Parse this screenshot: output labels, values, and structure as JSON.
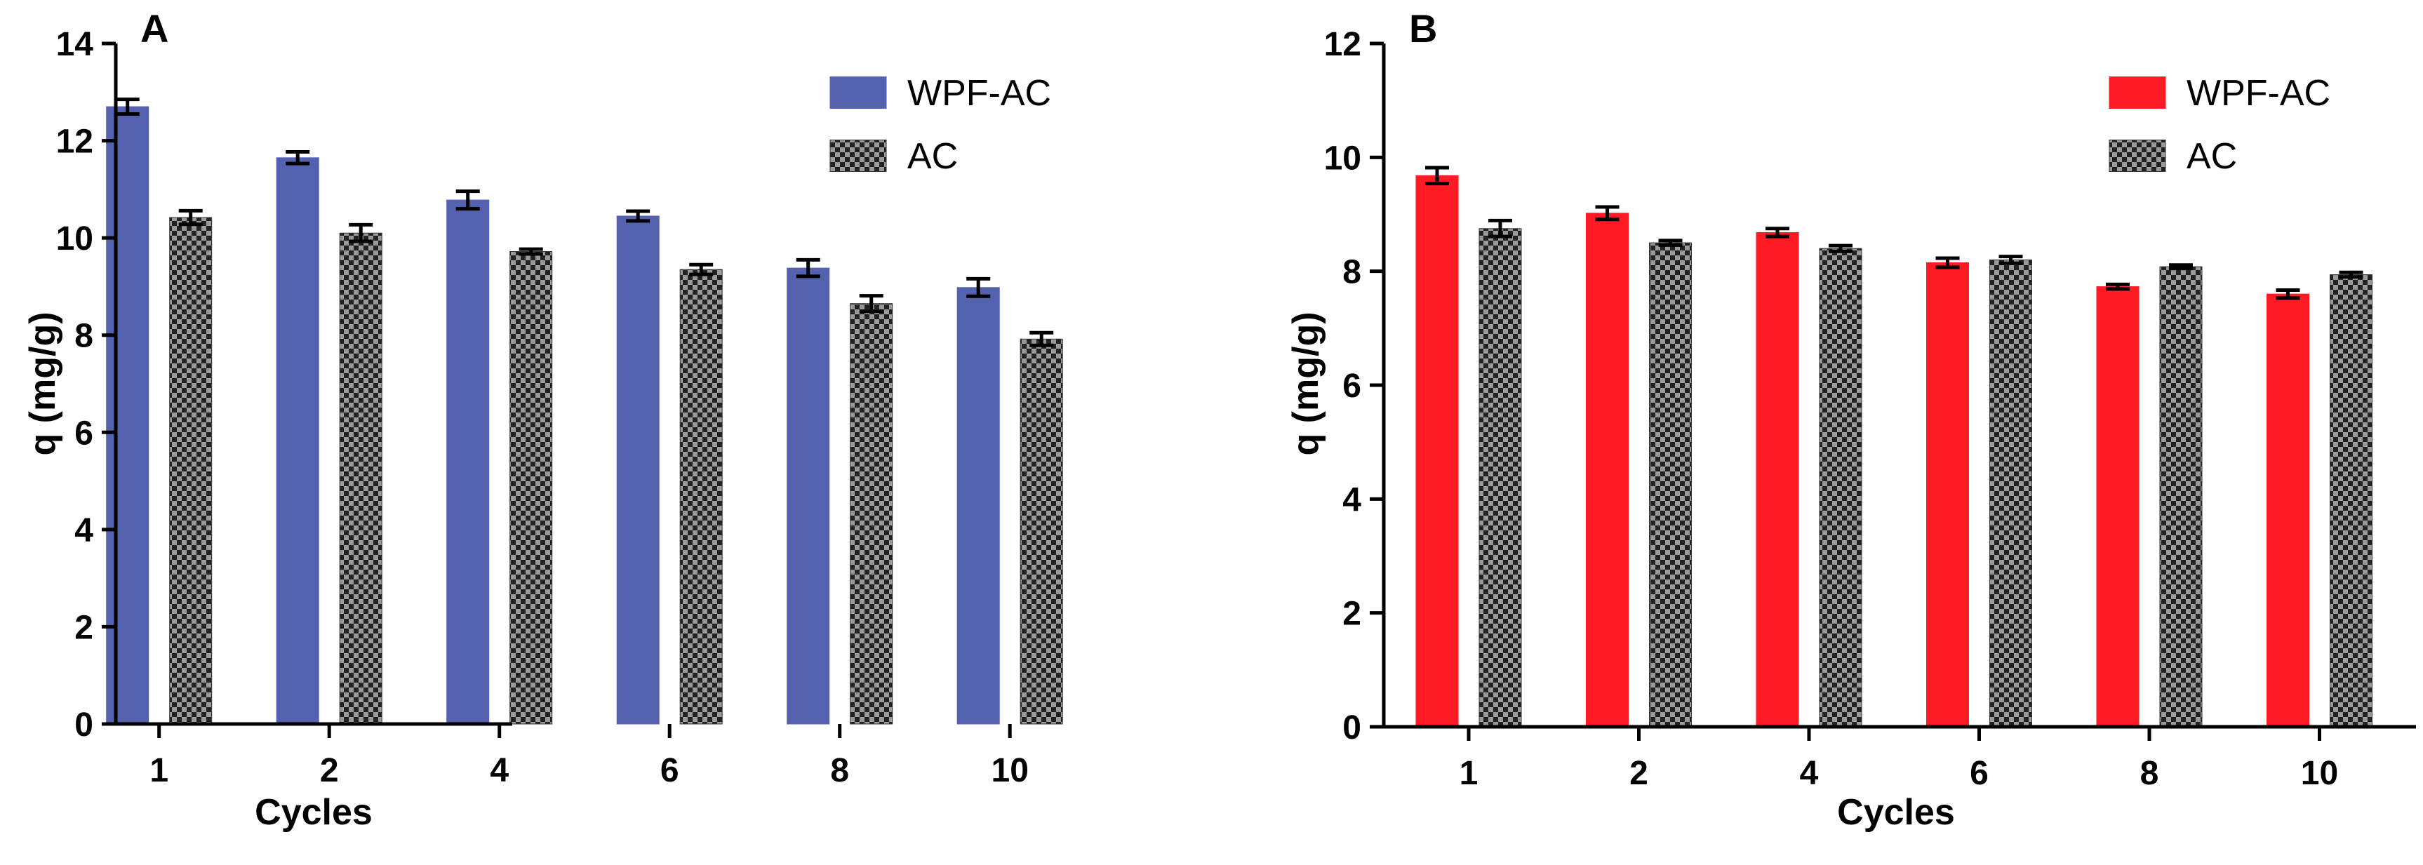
{
  "chart_data": [
    {
      "type": "bar",
      "panel_label": "A",
      "title": "",
      "xlabel": "Cycles",
      "ylabel": "q (mg/g)",
      "categories": [
        "1",
        "2",
        "4",
        "6",
        "8",
        "10"
      ],
      "ylim": [
        0,
        14
      ],
      "yticks": [
        "0",
        "2",
        "4",
        "6",
        "8",
        "10",
        "12",
        "14"
      ],
      "grid": false,
      "legend_position": "top-right",
      "series": [
        {
          "name": "WPF-AC",
          "pattern": "solid",
          "color": "#5461ae",
          "values": [
            12.7,
            11.65,
            10.78,
            10.45,
            9.38,
            8.98
          ],
          "errors": [
            0.15,
            0.12,
            0.18,
            0.1,
            0.17,
            0.18
          ]
        },
        {
          "name": "AC",
          "pattern": "checkered",
          "color": "#2f2f2f",
          "values": [
            10.42,
            10.1,
            9.72,
            9.35,
            8.65,
            7.92
          ],
          "errors": [
            0.14,
            0.17,
            0.05,
            0.1,
            0.16,
            0.13
          ]
        }
      ]
    },
    {
      "type": "bar",
      "panel_label": "B",
      "title": "",
      "xlabel": "Cycles",
      "ylabel": "q (mg/g)",
      "categories": [
        "1",
        "2",
        "4",
        "6",
        "8",
        "10"
      ],
      "ylim": [
        0,
        12
      ],
      "yticks": [
        "0",
        "2",
        "4",
        "6",
        "8",
        "10",
        "12"
      ],
      "grid": false,
      "legend_position": "top-right",
      "series": [
        {
          "name": "WPF-AC",
          "pattern": "solid",
          "color": "#ff1a24",
          "values": [
            9.68,
            9.02,
            8.68,
            8.15,
            7.73,
            7.6
          ],
          "errors": [
            0.14,
            0.11,
            0.07,
            0.08,
            0.04,
            0.07
          ]
        },
        {
          "name": "AC",
          "pattern": "checkered",
          "color": "#2f2f2f",
          "values": [
            8.75,
            8.5,
            8.4,
            8.2,
            8.08,
            7.94
          ],
          "errors": [
            0.14,
            0.04,
            0.05,
            0.06,
            0.03,
            0.04
          ]
        }
      ]
    }
  ]
}
